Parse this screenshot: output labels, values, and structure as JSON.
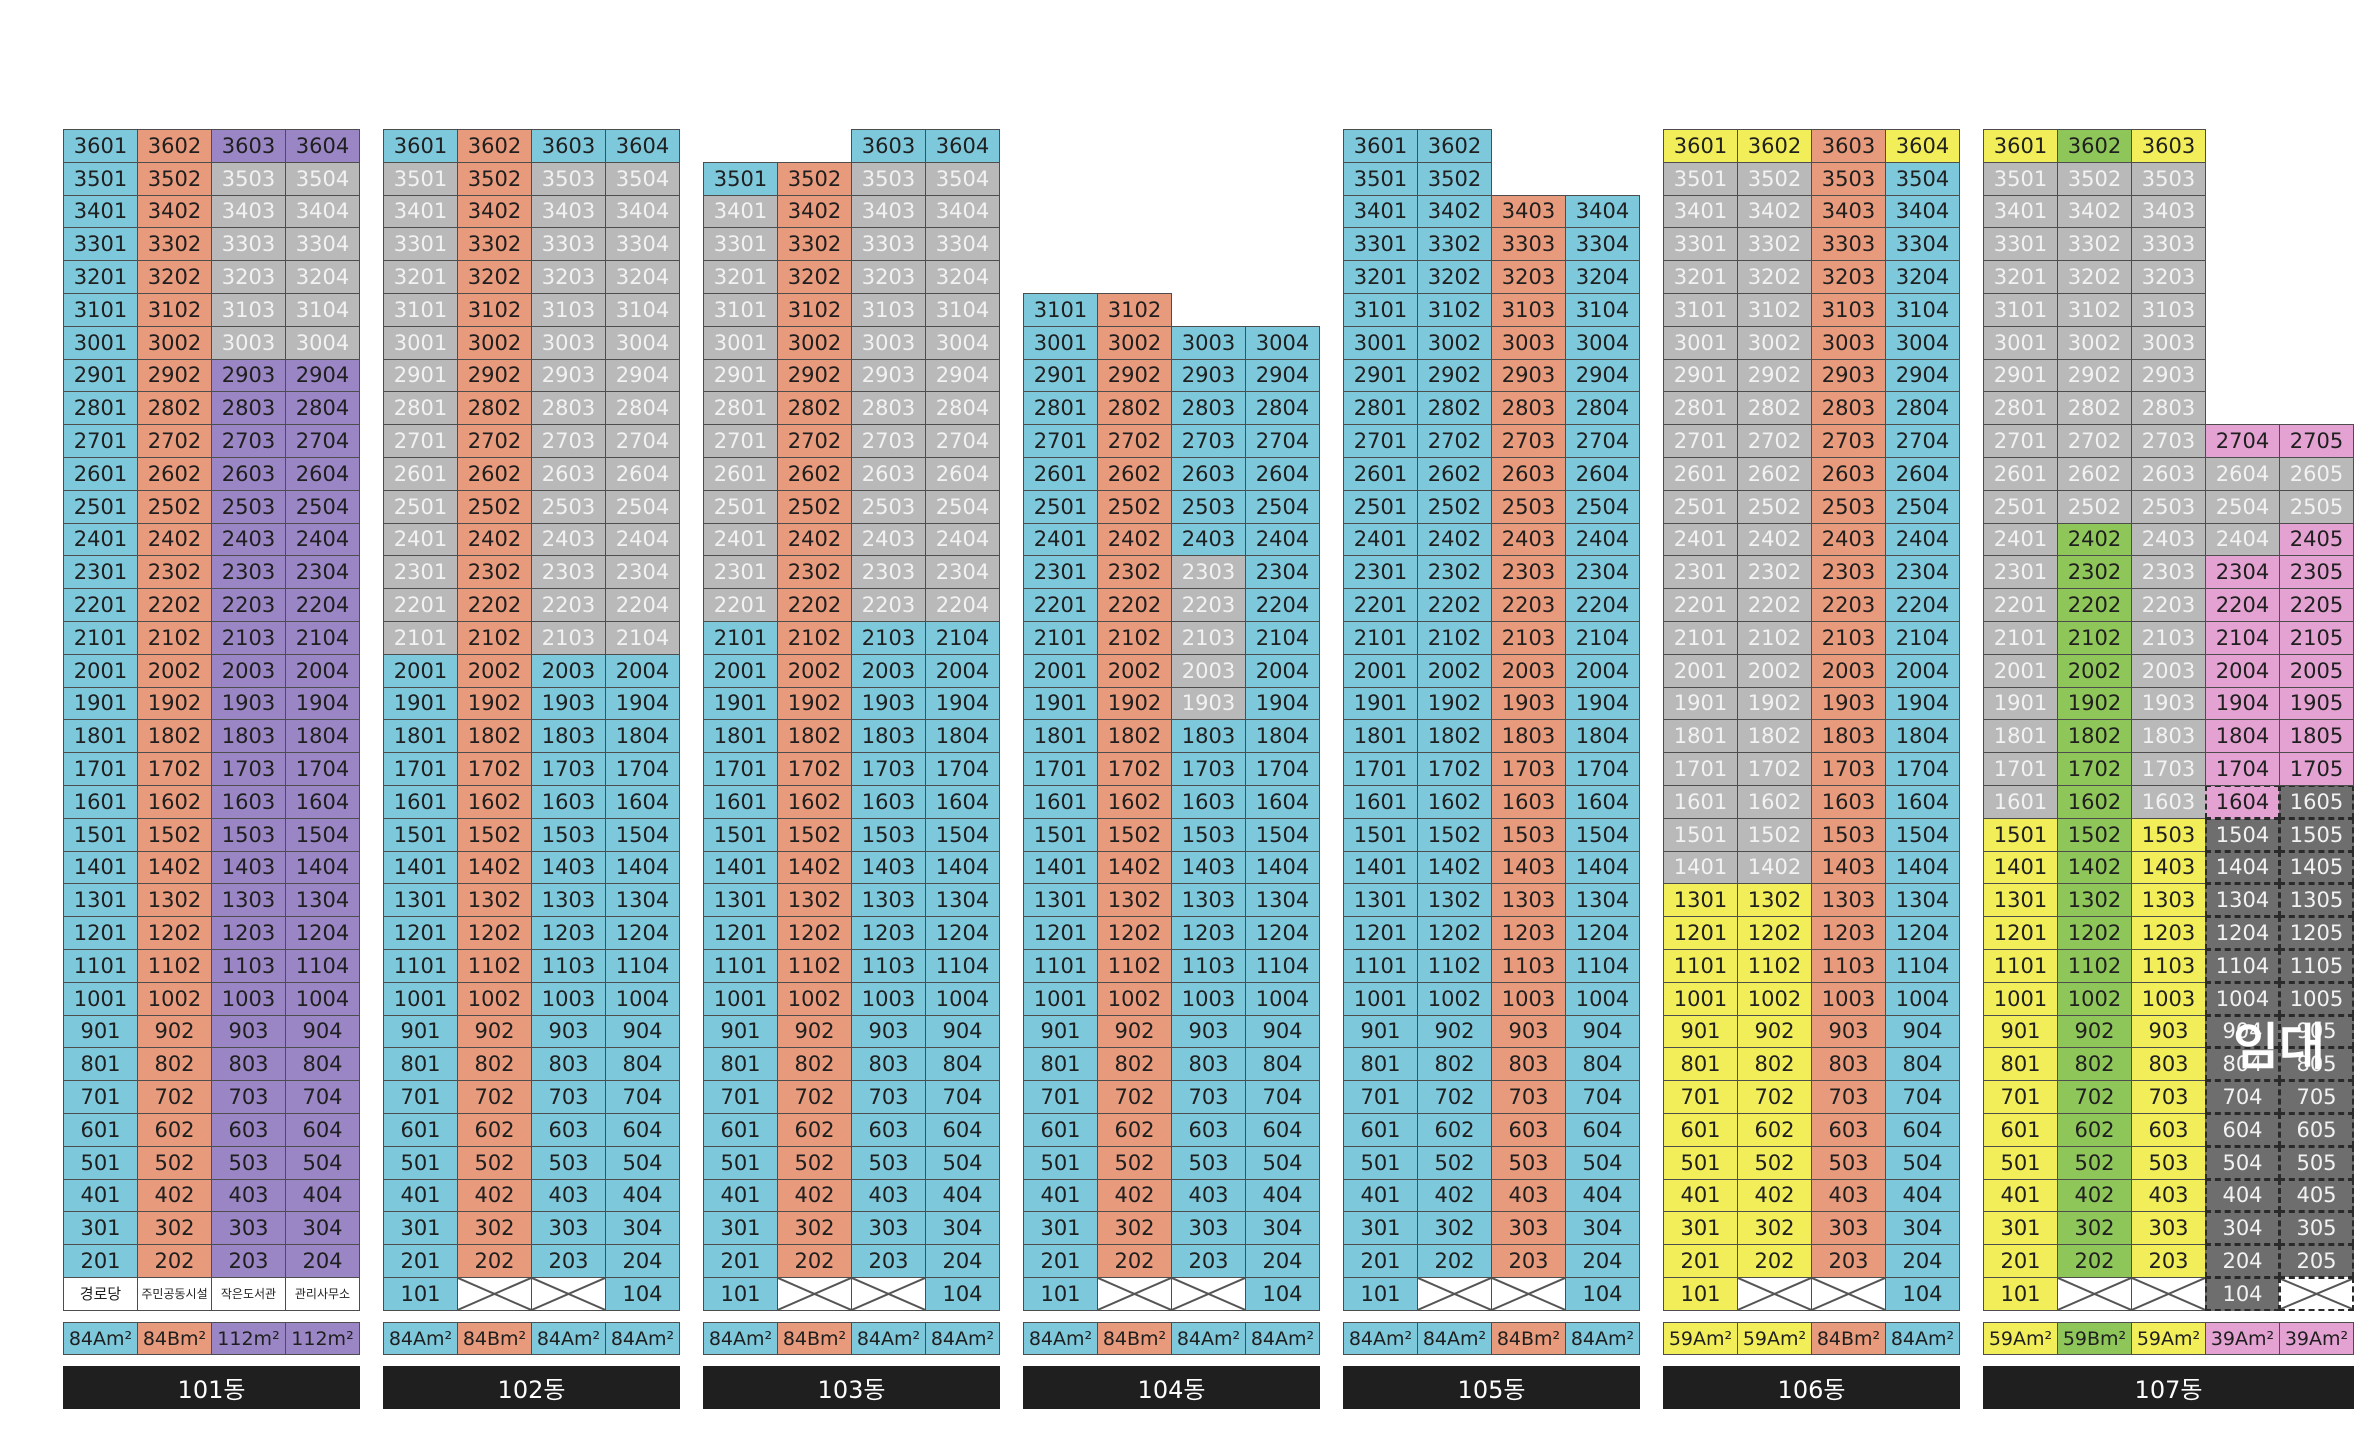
{
  "colors": {
    "blue": "#7ec8dc",
    "orange": "#e89a7c",
    "gray": "#b9b9b9",
    "purple": "#9a86c4",
    "yellow": "#f2ee5a",
    "green": "#8fc65a",
    "pink": "#e3a2d2",
    "dark": "#6e6e6e",
    "white": "#ffffff"
  },
  "rental_label": "임대",
  "buildings": [
    {
      "label": "101동",
      "cols": 4,
      "top_floor": 36,
      "ground": [
        "경로당",
        "주민공동시설",
        "작은도서관",
        "관리사무소"
      ],
      "areas": [
        [
          "84Am²",
          "blue"
        ],
        [
          "84Bm²",
          "orange"
        ],
        [
          "112m²",
          "purple"
        ],
        [
          "112m²",
          "purple"
        ]
      ],
      "rules": [
        {
          "floors": [
            2,
            36
          ],
          "cols": [
            1
          ],
          "color": "blue"
        },
        {
          "floors": [
            2,
            36
          ],
          "cols": [
            2
          ],
          "color": "orange"
        },
        {
          "floors": [
            2,
            36
          ],
          "cols": [
            3,
            4
          ],
          "color": "purple"
        },
        {
          "floors": [
            30,
            35
          ],
          "cols": [
            3,
            4
          ],
          "color": "gray"
        }
      ]
    },
    {
      "label": "102동",
      "cols": 4,
      "top_floor": 36,
      "ground": [
        "101",
        "X",
        "X",
        "104"
      ],
      "areas": [
        [
          "84Am²",
          "blue"
        ],
        [
          "84Bm²",
          "orange"
        ],
        [
          "84Am²",
          "blue"
        ],
        [
          "84Am²",
          "blue"
        ]
      ],
      "rules": [
        {
          "floors": [
            2,
            36
          ],
          "cols": [
            1,
            3,
            4
          ],
          "color": "blue"
        },
        {
          "floors": [
            2,
            36
          ],
          "cols": [
            2
          ],
          "color": "orange"
        },
        {
          "floors": [
            21,
            35
          ],
          "cols": [
            1,
            3,
            4
          ],
          "color": "gray"
        }
      ]
    },
    {
      "label": "103동",
      "cols": 4,
      "top_floor": 36,
      "tops": [
        35,
        35,
        36,
        36
      ],
      "ground": [
        "101",
        "X",
        "X",
        "104"
      ],
      "areas": [
        [
          "84Am²",
          "blue"
        ],
        [
          "84Bm²",
          "orange"
        ],
        [
          "84Am²",
          "blue"
        ],
        [
          "84Am²",
          "blue"
        ]
      ],
      "rules": [
        {
          "floors": [
            2,
            36
          ],
          "cols": [
            1,
            3,
            4
          ],
          "color": "blue"
        },
        {
          "floors": [
            2,
            36
          ],
          "cols": [
            2
          ],
          "color": "orange"
        },
        {
          "floors": [
            22,
            34
          ],
          "cols": [
            1
          ],
          "color": "gray"
        },
        {
          "floors": [
            22,
            35
          ],
          "cols": [
            3,
            4
          ],
          "color": "gray"
        }
      ]
    },
    {
      "label": "104동",
      "cols": 4,
      "top_floor": 31,
      "tops": [
        31,
        31,
        30,
        30
      ],
      "ground": [
        "101",
        "X",
        "X",
        "104"
      ],
      "areas": [
        [
          "84Am²",
          "blue"
        ],
        [
          "84Bm²",
          "orange"
        ],
        [
          "84Am²",
          "blue"
        ],
        [
          "84Am²",
          "blue"
        ]
      ],
      "rules": [
        {
          "floors": [
            2,
            31
          ],
          "cols": [
            1,
            3,
            4
          ],
          "color": "blue"
        },
        {
          "floors": [
            2,
            31
          ],
          "cols": [
            2
          ],
          "color": "orange"
        },
        {
          "floors": [
            19,
            23
          ],
          "cols": [
            3
          ],
          "color": "gray"
        }
      ]
    },
    {
      "label": "105동",
      "cols": 4,
      "top_floor": 36,
      "tops": [
        36,
        36,
        34,
        34
      ],
      "ground": [
        "101",
        "X",
        "X",
        "104"
      ],
      "areas": [
        [
          "84Am²",
          "blue"
        ],
        [
          "84Am²",
          "blue"
        ],
        [
          "84Bm²",
          "orange"
        ],
        [
          "84Am²",
          "blue"
        ]
      ],
      "rules": [
        {
          "floors": [
            2,
            36
          ],
          "cols": [
            1,
            2,
            4
          ],
          "color": "blue"
        },
        {
          "floors": [
            2,
            36
          ],
          "cols": [
            3
          ],
          "color": "orange"
        }
      ]
    },
    {
      "label": "106동",
      "cols": 4,
      "top_floor": 36,
      "ground": [
        "101",
        "X",
        "X",
        "104"
      ],
      "areas": [
        [
          "59Am²",
          "yellow"
        ],
        [
          "59Am²",
          "yellow"
        ],
        [
          "84Bm²",
          "orange"
        ],
        [
          "84Am²",
          "blue"
        ]
      ],
      "rules": [
        {
          "floors": [
            2,
            36
          ],
          "cols": [
            1,
            2
          ],
          "color": "yellow"
        },
        {
          "floors": [
            2,
            36
          ],
          "cols": [
            3
          ],
          "color": "orange"
        },
        {
          "floors": [
            2,
            36
          ],
          "cols": [
            4
          ],
          "color": "blue"
        },
        {
          "floors": [
            14,
            35
          ],
          "cols": [
            1,
            2
          ],
          "color": "gray"
        },
        {
          "floors": [
            36,
            36
          ],
          "cols": [
            4
          ],
          "color": "yellow"
        }
      ]
    },
    {
      "label": "107동",
      "cols": 5,
      "top_floor": 36,
      "tops": [
        36,
        36,
        36,
        27,
        27
      ],
      "ground": [
        "101",
        "X",
        "X",
        "104",
        "X"
      ],
      "areas": [
        [
          "59Am²",
          "yellow"
        ],
        [
          "59Bm²",
          "green"
        ],
        [
          "59Am²",
          "yellow"
        ],
        [
          "39Am²",
          "pink"
        ],
        [
          "39Am²",
          "pink"
        ]
      ],
      "rules": [
        {
          "floors": [
            2,
            36
          ],
          "cols": [
            1,
            3
          ],
          "color": "yellow"
        },
        {
          "floors": [
            2,
            36
          ],
          "cols": [
            2
          ],
          "color": "green"
        },
        {
          "floors": [
            16,
            35
          ],
          "cols": [
            1,
            3
          ],
          "color": "gray"
        },
        {
          "floors": [
            25,
            35
          ],
          "cols": [
            2
          ],
          "color": "gray"
        },
        {
          "floors": [
            2,
            27
          ],
          "cols": [
            4,
            5
          ],
          "color": "pink"
        },
        {
          "floors": [
            25,
            26
          ],
          "cols": [
            4,
            5
          ],
          "color": "gray"
        },
        {
          "floors": [
            24,
            24
          ],
          "cols": [
            4
          ],
          "color": "gray"
        },
        {
          "floors": [
            2,
            15
          ],
          "cols": [
            4,
            5
          ],
          "color": "dark"
        },
        {
          "floors": [
            16,
            16
          ],
          "cols": [
            5
          ],
          "color": "dark"
        }
      ],
      "dashed": [
        {
          "floors": [
            1,
            16
          ],
          "cols": [
            4,
            5
          ]
        }
      ]
    }
  ]
}
